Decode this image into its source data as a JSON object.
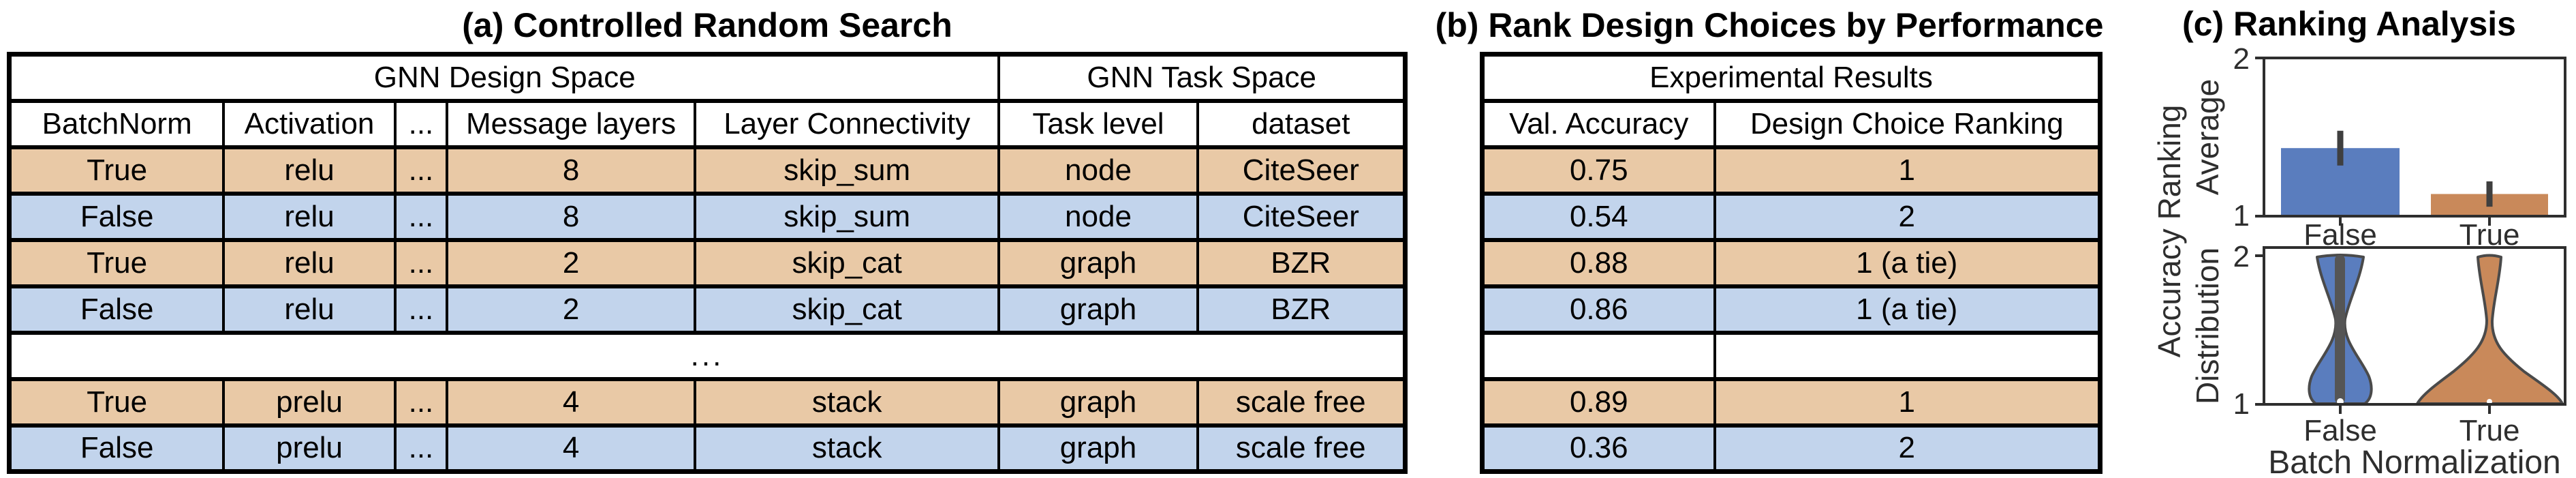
{
  "panel_a": {
    "title": "(a) Controlled Random Search",
    "table": {
      "group_headers": [
        "GNN Design Space",
        "GNN Task Space"
      ],
      "columns": [
        "BatchNorm",
        "Activation",
        "...",
        "Message layers",
        "Layer Connectivity",
        "Task level",
        "dataset"
      ],
      "rows": [
        [
          "True",
          "relu",
          "...",
          "8",
          "skip_sum",
          "node",
          "CiteSeer"
        ],
        [
          "False",
          "relu",
          "...",
          "8",
          "skip_sum",
          "node",
          "CiteSeer"
        ],
        [
          "True",
          "relu",
          "...",
          "2",
          "skip_cat",
          "graph",
          "BZR"
        ],
        [
          "False",
          "relu",
          "...",
          "2",
          "skip_cat",
          "graph",
          "BZR"
        ],
        [
          "True",
          "prelu",
          "...",
          "4",
          "stack",
          "graph",
          "scale free"
        ],
        [
          "False",
          "prelu",
          "...",
          "4",
          "stack",
          "graph",
          "scale free"
        ]
      ],
      "ellipsis_row": "..."
    }
  },
  "panel_b": {
    "title": "(b) Rank Design Choices by Performance",
    "table": {
      "group_header": "Experimental Results",
      "columns": [
        "Val. Accuracy",
        "Design Choice Ranking"
      ],
      "rows": [
        [
          "0.75",
          "1"
        ],
        [
          "0.54",
          "2"
        ],
        [
          "0.88",
          "1 (a tie)"
        ],
        [
          "0.86",
          "1 (a tie)"
        ],
        [
          "0.89",
          "1"
        ],
        [
          "0.36",
          "2"
        ]
      ]
    }
  },
  "panel_c": {
    "title": "(c) Ranking Analysis",
    "shared_ylabel": "Accuracy Ranking",
    "top": {
      "ylabel": "Average",
      "yticks": [
        "2",
        "1"
      ],
      "xticklabels": [
        "False",
        "True"
      ]
    },
    "bottom": {
      "ylabel": "Distribution",
      "yticks": [
        "2",
        "1"
      ],
      "xticklabels": [
        "False",
        "True"
      ],
      "xlabel": "Batch Normalization"
    }
  },
  "chart_data": [
    {
      "type": "bar",
      "title": "(c) Ranking Analysis",
      "categories": [
        "False",
        "True"
      ],
      "values": [
        1.43,
        1.14
      ],
      "error_low": [
        1.32,
        1.06
      ],
      "error_high": [
        1.54,
        1.22
      ],
      "ylabel": "Average",
      "shared_ylabel": "Accuracy Ranking",
      "xlabel": "",
      "ylim": [
        1,
        2
      ],
      "yticks": [
        1,
        2
      ],
      "colors": [
        "#5a7dbe",
        "#c9895a"
      ],
      "grid": false,
      "legend": false
    },
    {
      "type": "violin",
      "categories": [
        "False",
        "True"
      ],
      "ylabel": "Distribution",
      "shared_ylabel": "Accuracy Ranking",
      "xlabel": "Batch Normalization",
      "ylim": [
        1,
        2
      ],
      "yticks": [
        1,
        2
      ],
      "colors": [
        "#5a7dbe",
        "#c9895a"
      ],
      "series": [
        {
          "name": "False",
          "shape": "bimodal",
          "modes": [
            1,
            2
          ],
          "inner_box_range": [
            1,
            2
          ],
          "median": 1
        },
        {
          "name": "True",
          "shape": "skewed-low",
          "modes": [
            1
          ],
          "median": 1
        }
      ]
    }
  ],
  "colors": {
    "row_true": "#e9c9a6",
    "row_false": "#c2d4ec",
    "bar_false": "#5a7dbe",
    "bar_true": "#c9895a",
    "axis": "#2e2e2e",
    "error_bar": "#3f3f3f",
    "violin_outline": "#4a4a4a",
    "inner_box": "#555555",
    "table_border": "#000000"
  }
}
